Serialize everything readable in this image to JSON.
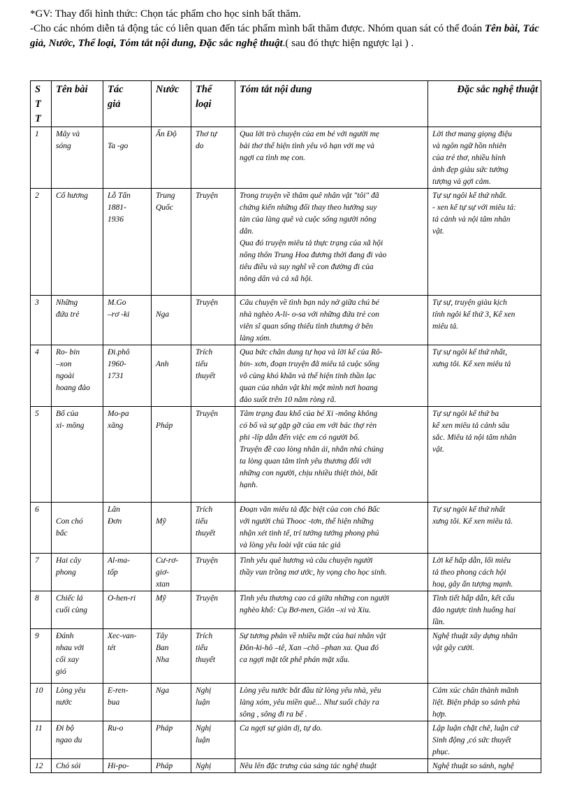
{
  "intro": {
    "line1": "*GV: Thay đổi hình thức: Chọn tác phẩm cho học sinh bất thăm.",
    "line2_pre": "-Cho các nhóm diễn tả động tác có  liên quan đến tác phẩm mình bất  thăm  được.  Nhóm quan sát có thể đoán ",
    "line2_bold": "Tên bài, Tác giả, Nước, Thể loại, Tóm tắt nội dung,  Đặc sắc nghệ thuật",
    "line2_post": ".( sau đó thực hiện ngược lại ) ."
  },
  "table": {
    "headers": [
      "S\nT\nT",
      "Tên bài",
      "Tác\ngiả",
      "Nước",
      "Thể\nloại",
      "Tóm tắt nội dung",
      "Đặc sắc nghệ thuật"
    ],
    "rows": [
      [
        "1",
        "Mây và\nsóng",
        "\nTa -go",
        "Ấn Độ",
        " Thơ tự\ndo",
        "Qua lời trò chuyện của em bé với người mẹ\nbài thơ thể hiện tình yêu vô hạn với mẹ và\nngợi ca tình mẹ con.",
        "Lời thơ mang giọng điệu\nvà ngôn ngữ hồn nhiên\ncủa trẻ thơ, nhiều hình\nảnh đẹp  giàu sức tưởng\ntượng và gợi cảm."
      ],
      [
        "2",
        " Cố hương",
        " Lỗ Tấn\n1881-\n1936",
        " Trung\nQuốc",
        "Truyện",
        "  Trong truyện về thăm quê nhân vật \"tôi\" đã\nchứng kiến những đổi thay theo hướng suy\ntàn của làng quê và cuộc sống người nông\ndân.\n  Qua đó truyện miêu tả thực trạng của xã hội\nnông thôn Trung Hoa đương thời đang đi vào\ntiêu điều và suy nghĩ về con đường đi của\nnông dân và cả xã hội.",
        " Tự sự ngôi kể thứ nhất.\n- xen kể tự sự với miêu tả:\ntả cảnh và nội tâm nhân\nvật."
      ],
      [
        "3",
        " Những\nđứa trẻ",
        " M.Go\n–rơ -ki",
        "\n Nga",
        " Truyện",
        " Câu chuyện về tình bạn nảy nở giữa chú bé\nnhà nghèo A-li- o-sa với những đứa trẻ con\nviên sĩ quan sống thiếu tình thương ở bên\nlàng xóm.",
        "Tự sự, truyện giàu kịch\ntính ngôi kể thứ 3, Kể xen\nmiêu tả."
      ],
      [
        "4",
        " Ro- bin\n–xon\nngoài\nhoang đảo",
        " Đi.phô\n1960-\n1731",
        "\n Anh",
        "Trích\ntiểu\nthuyết",
        " Qua bức chân dung tự họa và lời kể của Rô-\nbin- xơn, đoạn truyện đã miêu tả cuộc sống\nvô cùng khó khăn  và thể hiện tinh thần lạc\nquan của nhân vật khi một mình nơi hoang\nđảo suốt trên 10 năm ròng rã.",
        "Tự sự ngôi kể thứ nhất,\nxưng tôi. Kể xen miêu tả"
      ],
      [
        "5",
        " Bố của\nxi- mông",
        " Mo-pa\nxăng",
        "\nPháp",
        "Truyện",
        " Tâm trạng đau khổ của bé Xi -mông không\ncó bố và sự gặp gỡ của em với bác thợ rèn\nphi -líp dẫn đến việc em có người bố.\nTruyện đề cao lòng nhân ái, nhắn nhủ chúng\nta lòng quan tâm tình yêu thương đối với\nnhững con người, chịu nhiều thiệt thòi, bất\nhạnh.",
        "Tự sự ngôi kể thứ ba\nkể xen miêu tả cảnh sâu\nsắc. Miêu tả nội tâm nhân\nvật."
      ],
      [
        "6",
        "\n Con chó\n bấc",
        " Lân\nĐơn",
        "\n Mỹ",
        " Trích\ntiểu\nthuyết",
        " Đoạn văn miêu tả đặc biệt của con chó Bấc\nvới người chủ Thooc -tơn, thể hiện những\nnhận xét tinh tế, trí tưởng  tưởng phong phú\nvà lòng yêu loài vật của tác giả",
        "  Tự sự ngôi kể thứ nhất\nxưng tôi. Kể  xen miêu tả."
      ],
      [
        "7",
        "Hai cây\nphong",
        "Al-ma-\ntốp",
        "Cư-rơ-\ngiơ-\nxtan",
        "Truyện",
        "Tình yêu quê hương và câu chuyện người\nthầy vun trồng mơ ước, hy vọng cho học sinh.",
        "Lời kể hấp dẫn, lối miêu\ntả theo phong cách hội\nhoạ, gây ấn tượng mạnh."
      ],
      [
        "8",
        "Chiếc lá\ncuối cùng",
        "O-hen-ri",
        "Mỹ",
        "Truyện",
        "Tình yêu thương cao cả giữa những con người\nnghèo khổ: Cụ Bơ-men, Giôn –xi và Xiu.",
        "Tình tiết hấp dẫn, kết cấu\nđảo ngược tình huống  hai\nlần."
      ],
      [
        "9",
        "Đánh\nnhau với\ncối xay\ngió",
        "Xec-van-\ntét",
        "Tây\nBan\nNha",
        "Trích\ntiểu\nthuyết",
        "Sự tương phản về nhiều mặt của hai nhân vật\nĐôn-ki-hô –tê, Xan –chô –phan xa. Qua đó\nca ngợi mặt tốt phê phán mặt xấu.",
        "Nghệ thuật xây dựng nhân\nvật gây cười."
      ],
      [
        "10",
        "Lòng yêu\nnước",
        "E-ren-\nbua",
        "Nga",
        "Nghị\nluận",
        "Lòng yêu nước bắt  đầu từ lòng yêu nhà, yêu\nlàng xóm, yêu miền quê... Như suối chảy ra\nsông , sông đi ra bể .",
        "Cảm xúc chân thành mãnh\nliệt. Biện pháp so sánh phù\nhợp."
      ],
      [
        "11",
        "Đi bộ\nngao du",
        "Ru-o",
        "Pháp",
        "Nghị\nluận",
        "Ca ngợi sự giản dị, tự do.",
        "Lập luận chặt chẽ, luận cứ\nSinh động ,có sức thuyết\nphục."
      ],
      [
        "12",
        "Chó sói",
        "Hi-po-",
        "Pháp",
        "Nghị",
        "Nêu lên đặc trưng của sáng tác nghệ thuật",
        "Nghệ thuật so sánh, nghệ"
      ]
    ]
  }
}
